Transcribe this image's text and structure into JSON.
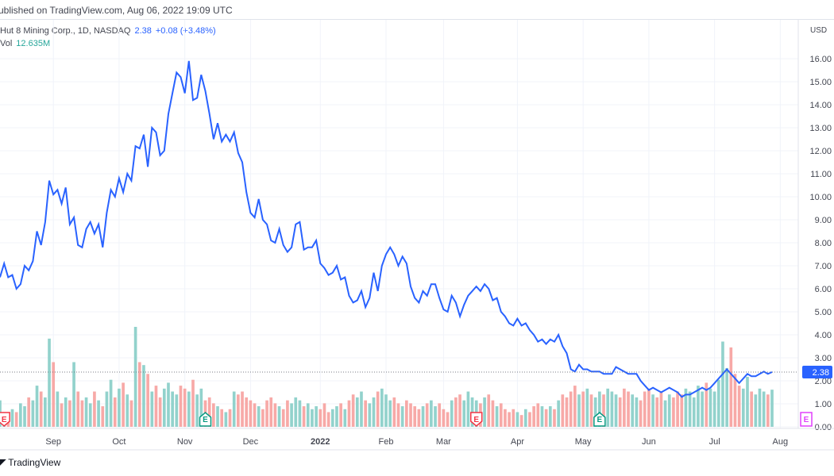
{
  "header": {
    "published": "ublished on TradingView.com, Aug 06, 2022 19:09 UTC",
    "currency": "USD"
  },
  "legend": {
    "symbol": "Hut 8 Mining Corp., 1D, NASDAQ",
    "last": "2.38",
    "change": "+0.08 (+3.48%)",
    "vol_label": "Vol",
    "vol_value": "12.635M"
  },
  "colors": {
    "line": "#2962ff",
    "vol_up": "#92d2cc",
    "vol_down": "#f7a9a7",
    "grid": "#f0f3fa",
    "earn_red": "#f23645",
    "earn_green": "#089981",
    "earn_future": "#e040fb"
  },
  "footer": {
    "brand": "TradingView",
    "logo": "TV"
  },
  "chart_data": {
    "type": "line",
    "title": "Hut 8 Mining Corp., 1D, NASDAQ",
    "ylabel": "USD",
    "ylim": [
      0,
      16.5
    ],
    "y_ticks": [
      "0.00",
      "1.00",
      "2.00",
      "3.00",
      "4.00",
      "5.00",
      "6.00",
      "7.00",
      "8.00",
      "9.00",
      "10.00",
      "11.00",
      "12.00",
      "13.00",
      "14.00",
      "15.00",
      "16.00"
    ],
    "x_ticks": [
      {
        "label": "Sep",
        "i": 13
      },
      {
        "label": "Oct",
        "i": 29
      },
      {
        "label": "Nov",
        "i": 45
      },
      {
        "label": "Dec",
        "i": 61
      },
      {
        "label": "2022",
        "i": 78,
        "bold": true
      },
      {
        "label": "Feb",
        "i": 94
      },
      {
        "label": "Mar",
        "i": 108
      },
      {
        "label": "Apr",
        "i": 126
      },
      {
        "label": "May",
        "i": 142
      },
      {
        "label": "Jun",
        "i": 158
      },
      {
        "label": "Jul",
        "i": 174
      },
      {
        "label": "Aug",
        "i": 190
      }
    ],
    "last_price": "2.38",
    "price": [
      6.5,
      7.1,
      6.5,
      6.6,
      6.0,
      6.2,
      7.0,
      6.8,
      7.2,
      8.5,
      7.9,
      8.9,
      10.7,
      10.1,
      10.3,
      9.7,
      10.4,
      8.8,
      9.1,
      7.9,
      7.8,
      8.6,
      8.9,
      8.4,
      8.8,
      7.8,
      9.3,
      10.3,
      10.0,
      10.8,
      10.2,
      11.0,
      10.7,
      12.2,
      12.1,
      12.7,
      11.3,
      13.0,
      12.8,
      11.8,
      12.0,
      13.6,
      14.5,
      15.4,
      15.2,
      14.5,
      15.9,
      14.2,
      14.3,
      15.3,
      14.6,
      13.6,
      12.5,
      13.2,
      12.4,
      12.7,
      12.4,
      12.8,
      11.9,
      11.5,
      10.2,
      9.3,
      9.1,
      9.9,
      9.0,
      8.8,
      8.1,
      8.0,
      8.6,
      7.9,
      7.6,
      7.8,
      8.8,
      8.9,
      7.7,
      7.8,
      7.8,
      8.1,
      7.1,
      6.9,
      6.6,
      6.7,
      7.0,
      6.4,
      6.5,
      5.7,
      5.4,
      5.5,
      5.9,
      5.2,
      5.6,
      6.7,
      5.9,
      7.0,
      7.5,
      7.8,
      7.5,
      7.0,
      7.4,
      7.1,
      6.1,
      5.6,
      5.4,
      5.9,
      5.7,
      6.2,
      6.2,
      5.6,
      5.1,
      5.0,
      5.7,
      5.4,
      4.8,
      5.3,
      5.7,
      5.9,
      6.1,
      5.9,
      6.2,
      6.0,
      5.5,
      5.6,
      5.0,
      4.8,
      4.5,
      4.4,
      4.7,
      4.4,
      4.5,
      4.2,
      4.0,
      3.7,
      3.8,
      3.6,
      3.8,
      3.7,
      4.0,
      3.5,
      3.2,
      2.5,
      2.4,
      2.7,
      2.5,
      2.5,
      2.4,
      2.4,
      2.4,
      2.3,
      2.3,
      2.3,
      2.6,
      2.5,
      2.4,
      2.3,
      2.3,
      2.3,
      2.0,
      1.8,
      1.6,
      1.7,
      1.6,
      1.5,
      1.6,
      1.7,
      1.6,
      1.5,
      1.3,
      1.4,
      1.4,
      1.5,
      1.6,
      1.7,
      1.6,
      1.7,
      1.9,
      2.1,
      2.3,
      2.5,
      2.3,
      2.1,
      1.9,
      2.1,
      2.3,
      2.2,
      2.2,
      2.3,
      2.4,
      2.3,
      2.38
    ],
    "volume_m": [
      9,
      5,
      4,
      6,
      5,
      8,
      7,
      10,
      9,
      14,
      12,
      10,
      30,
      22,
      12,
      8,
      10,
      9,
      22,
      12,
      9,
      10,
      8,
      12,
      9,
      7,
      12,
      16,
      10,
      13,
      15,
      11,
      9,
      34,
      22,
      21,
      18,
      12,
      14,
      10,
      13,
      15,
      12,
      11,
      14,
      13,
      12,
      16,
      11,
      13,
      9,
      10,
      8,
      7,
      6,
      5,
      6,
      12,
      11,
      12,
      10,
      9,
      8,
      7,
      6,
      9,
      10,
      8,
      7,
      6,
      9,
      8,
      10,
      9,
      7,
      8,
      6,
      7,
      6,
      8,
      5,
      6,
      7,
      8,
      6,
      9,
      11,
      10,
      12,
      9,
      8,
      10,
      12,
      13,
      11,
      9,
      10,
      8,
      7,
      9,
      8,
      7,
      6,
      7,
      8,
      9,
      7,
      8,
      6,
      5,
      9,
      10,
      11,
      9,
      12,
      10,
      9,
      8,
      10,
      11,
      9,
      7,
      8,
      6,
      5,
      6,
      5,
      4,
      6,
      5,
      7,
      8,
      7,
      6,
      7,
      6,
      9,
      11,
      10,
      12,
      14,
      11,
      12,
      13,
      11,
      10,
      12,
      11,
      13,
      12,
      11,
      10,
      13,
      12,
      11,
      10,
      9,
      12,
      13,
      11,
      10,
      12,
      9,
      11,
      10,
      12,
      11,
      13,
      12,
      10,
      14,
      12,
      15,
      13,
      12,
      16,
      29,
      20,
      27,
      18,
      14,
      13,
      17,
      12,
      11,
      13,
      12,
      11,
      12.635
    ],
    "earnings": [
      {
        "i": 1,
        "kind": "red",
        "label": "E"
      },
      {
        "i": 50,
        "kind": "green",
        "label": "E"
      },
      {
        "i": 116,
        "kind": "red",
        "label": "E"
      },
      {
        "i": 146,
        "kind": "green",
        "label": "E"
      },
      {
        "i": 194,
        "kind": "future",
        "label": "E"
      }
    ]
  }
}
